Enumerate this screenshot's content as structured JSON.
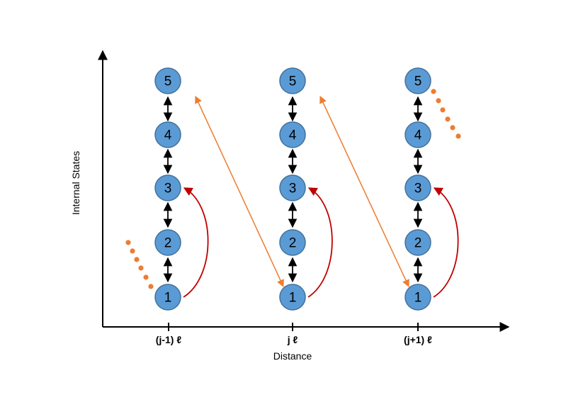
{
  "axes": {
    "y_title": "Internal States",
    "x_title": "Distance",
    "x_ticks": [
      "(j-1) ℓ",
      "j ℓ",
      "(j+1) ℓ"
    ]
  },
  "columns": [
    {
      "states": [
        "1",
        "2",
        "3",
        "4",
        "5"
      ]
    },
    {
      "states": [
        "1",
        "2",
        "3",
        "4",
        "5"
      ]
    },
    {
      "states": [
        "1",
        "2",
        "3",
        "4",
        "5"
      ]
    }
  ],
  "colors": {
    "node_fill": "#5b9bd5",
    "node_stroke": "#41719c",
    "curve_arrow": "#c00000",
    "cross_arrow": "#ed7d31",
    "dots": "#ed7d31"
  }
}
